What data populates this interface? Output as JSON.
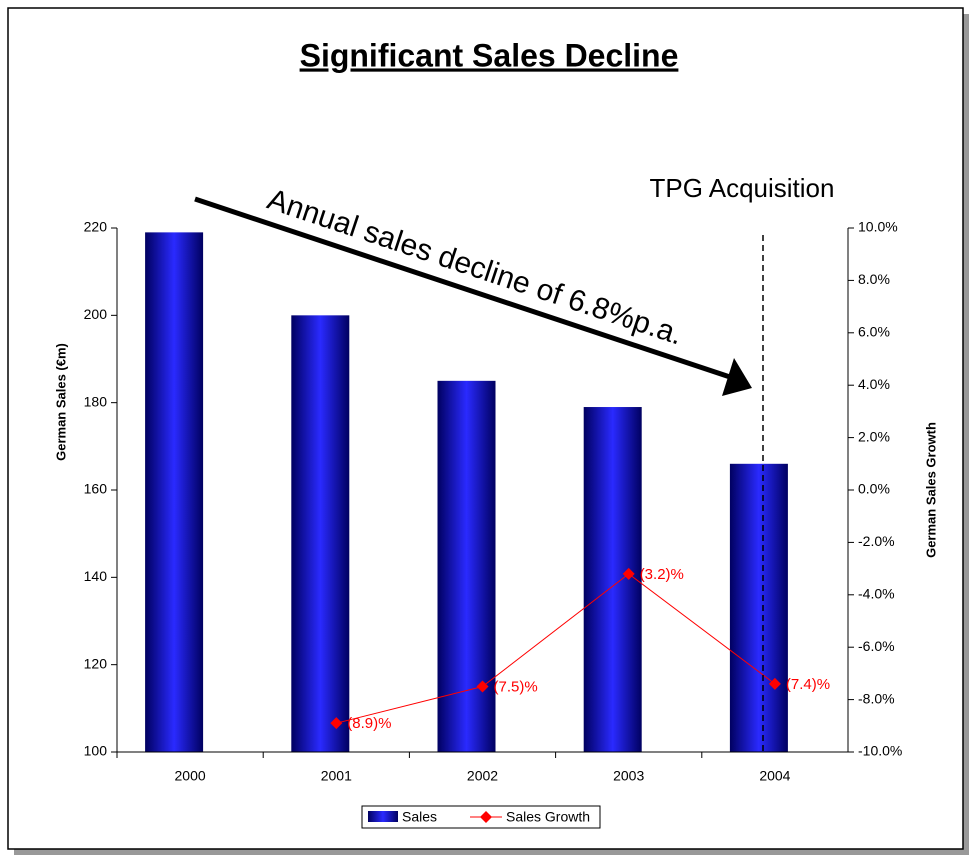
{
  "chart_data": {
    "type": "bar",
    "title": "Significant Sales Decline",
    "categories": [
      "2000",
      "2001",
      "2002",
      "2003",
      "2004"
    ],
    "series": [
      {
        "name": "Sales",
        "type": "bar",
        "color": "#1010e0",
        "values": [
          219,
          200,
          185,
          179,
          166
        ]
      },
      {
        "name": "Sales Growth",
        "type": "line",
        "axis": "y2",
        "color": "#ff0000",
        "values": [
          null,
          -8.9,
          -7.5,
          -3.2,
          -7.4
        ],
        "value_labels": [
          null,
          "(8.9)%",
          "(7.5)%",
          "(3.2)%",
          "(7.4)%"
        ]
      }
    ],
    "ylabel": "German Sales (€m)",
    "y2label": "German Sales Growth",
    "ylim": [
      100,
      220
    ],
    "yticks": [
      100,
      120,
      140,
      160,
      180,
      200,
      220
    ],
    "y2lim": [
      -10,
      10
    ],
    "y2ticks": [
      {
        "value": -10,
        "label": "-10.0%"
      },
      {
        "value": -8,
        "label": "-8.0%"
      },
      {
        "value": -6,
        "label": "-6.0%"
      },
      {
        "value": -4,
        "label": "-4.0%"
      },
      {
        "value": -2,
        "label": "-2.0%"
      },
      {
        "value": 0,
        "label": "0.0%"
      },
      {
        "value": 2,
        "label": "2.0%"
      },
      {
        "value": 4,
        "label": "4.0%"
      },
      {
        "value": 6,
        "label": "6.0%"
      },
      {
        "value": 8,
        "label": "8.0%"
      },
      {
        "value": 10,
        "label": "10.0%"
      }
    ],
    "annotations": [
      "Annual sales decline of 6.8%p.a.",
      "TPG Acquisition"
    ],
    "legend": "bottom"
  }
}
